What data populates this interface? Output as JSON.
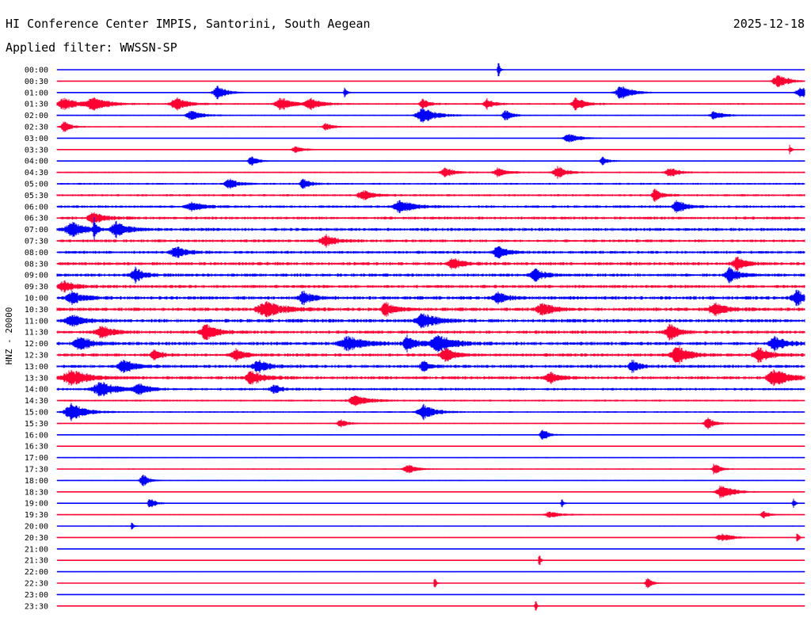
{
  "header": {
    "station": "HI Conference Center IMPIS, Santorini, South Aegean",
    "date": "2025-12-18",
    "filter": "Applied filter: WWSSN-SP"
  },
  "chart_data": {
    "type": "line",
    "title": "HI Conference Center IMPIS, Santorini, South Aegean",
    "subtitle": "Applied filter: WWSSN-SP",
    "ylabel": "HNZ - 20000",
    "xlabel": "",
    "colors": [
      "#0000ff",
      "#ff0033"
    ],
    "row_labels": [
      "00:00",
      "00:30",
      "01:00",
      "01:30",
      "02:00",
      "02:30",
      "03:00",
      "03:30",
      "04:00",
      "04:30",
      "05:00",
      "05:30",
      "06:00",
      "06:30",
      "07:00",
      "07:30",
      "08:00",
      "08:30",
      "09:00",
      "09:30",
      "10:00",
      "10:30",
      "11:00",
      "11:30",
      "12:00",
      "12:30",
      "13:00",
      "13:30",
      "14:00",
      "14:30",
      "15:00",
      "15:30",
      "16:00",
      "16:30",
      "17:00",
      "17:30",
      "18:00",
      "18:30",
      "19:00",
      "19:30",
      "20:00",
      "20:30",
      "21:00",
      "21:30",
      "22:00",
      "22:30",
      "23:00",
      "23:30"
    ],
    "noise_level": [
      0.2,
      0.2,
      0.35,
      0.55,
      0.4,
      0.35,
      0.25,
      0.3,
      0.4,
      0.5,
      0.6,
      0.7,
      0.8,
      0.9,
      1.0,
      0.9,
      0.9,
      1.0,
      1.0,
      1.0,
      1.1,
      1.1,
      1.1,
      1.0,
      1.1,
      1.0,
      1.0,
      1.0,
      0.8,
      0.6,
      0.5,
      0.4,
      0.4,
      0.35,
      0.35,
      0.35,
      0.35,
      0.35,
      0.35,
      0.35,
      0.3,
      0.3,
      0.3,
      0.3,
      0.25,
      0.25,
      0.25,
      0.2
    ],
    "events": [
      {
        "row": 0,
        "x": 0.59,
        "amp": 14,
        "w": 0.0015
      },
      {
        "row": 1,
        "x": 0.965,
        "amp": 9,
        "w": 0.01
      },
      {
        "row": 2,
        "x": 0.215,
        "amp": 9,
        "w": 0.008
      },
      {
        "row": 2,
        "x": 0.385,
        "amp": 7,
        "w": 0.002
      },
      {
        "row": 2,
        "x": 0.755,
        "amp": 9,
        "w": 0.01
      },
      {
        "row": 2,
        "x": 0.995,
        "amp": 8,
        "w": 0.008
      },
      {
        "row": 3,
        "x": 0.01,
        "amp": 8,
        "w": 0.012
      },
      {
        "row": 3,
        "x": 0.05,
        "amp": 9,
        "w": 0.012
      },
      {
        "row": 3,
        "x": 0.16,
        "amp": 8,
        "w": 0.01
      },
      {
        "row": 3,
        "x": 0.3,
        "amp": 8,
        "w": 0.01
      },
      {
        "row": 3,
        "x": 0.34,
        "amp": 7,
        "w": 0.01
      },
      {
        "row": 3,
        "x": 0.49,
        "amp": 6,
        "w": 0.006
      },
      {
        "row": 3,
        "x": 0.575,
        "amp": 7,
        "w": 0.006
      },
      {
        "row": 3,
        "x": 0.695,
        "amp": 8,
        "w": 0.008
      },
      {
        "row": 4,
        "x": 0.18,
        "amp": 6,
        "w": 0.01
      },
      {
        "row": 4,
        "x": 0.49,
        "amp": 10,
        "w": 0.012
      },
      {
        "row": 4,
        "x": 0.6,
        "amp": 7,
        "w": 0.006
      },
      {
        "row": 4,
        "x": 0.88,
        "amp": 6,
        "w": 0.008
      },
      {
        "row": 5,
        "x": 0.01,
        "amp": 7,
        "w": 0.006
      },
      {
        "row": 5,
        "x": 0.36,
        "amp": 5,
        "w": 0.006
      },
      {
        "row": 6,
        "x": 0.685,
        "amp": 6,
        "w": 0.01
      },
      {
        "row": 7,
        "x": 0.32,
        "amp": 4,
        "w": 0.008
      },
      {
        "row": 7,
        "x": 0.98,
        "amp": 8,
        "w": 0.0015
      },
      {
        "row": 8,
        "x": 0.26,
        "amp": 6,
        "w": 0.006
      },
      {
        "row": 8,
        "x": 0.73,
        "amp": 5,
        "w": 0.005
      },
      {
        "row": 9,
        "x": 0.52,
        "amp": 6,
        "w": 0.008
      },
      {
        "row": 9,
        "x": 0.59,
        "amp": 6,
        "w": 0.008
      },
      {
        "row": 9,
        "x": 0.67,
        "amp": 8,
        "w": 0.008
      },
      {
        "row": 9,
        "x": 0.82,
        "amp": 6,
        "w": 0.008
      },
      {
        "row": 10,
        "x": 0.23,
        "amp": 7,
        "w": 0.008
      },
      {
        "row": 10,
        "x": 0.33,
        "amp": 7,
        "w": 0.006
      },
      {
        "row": 11,
        "x": 0.41,
        "amp": 6,
        "w": 0.01
      },
      {
        "row": 11,
        "x": 0.8,
        "amp": 8,
        "w": 0.006
      },
      {
        "row": 12,
        "x": 0.18,
        "amp": 6,
        "w": 0.01
      },
      {
        "row": 12,
        "x": 0.46,
        "amp": 8,
        "w": 0.012
      },
      {
        "row": 12,
        "x": 0.83,
        "amp": 8,
        "w": 0.008
      },
      {
        "row": 13,
        "x": 0.05,
        "amp": 8,
        "w": 0.01
      },
      {
        "row": 14,
        "x": 0.02,
        "amp": 9,
        "w": 0.012
      },
      {
        "row": 14,
        "x": 0.05,
        "amp": 14,
        "w": 0.002
      },
      {
        "row": 14,
        "x": 0.08,
        "amp": 9,
        "w": 0.01
      },
      {
        "row": 15,
        "x": 0.36,
        "amp": 7,
        "w": 0.01
      },
      {
        "row": 16,
        "x": 0.16,
        "amp": 7,
        "w": 0.01
      },
      {
        "row": 16,
        "x": 0.59,
        "amp": 8,
        "w": 0.008
      },
      {
        "row": 17,
        "x": 0.53,
        "amp": 8,
        "w": 0.008
      },
      {
        "row": 17,
        "x": 0.91,
        "amp": 8,
        "w": 0.008
      },
      {
        "row": 18,
        "x": 0.105,
        "amp": 9,
        "w": 0.008
      },
      {
        "row": 18,
        "x": 0.64,
        "amp": 8,
        "w": 0.008
      },
      {
        "row": 18,
        "x": 0.9,
        "amp": 10,
        "w": 0.008
      },
      {
        "row": 19,
        "x": 0.01,
        "amp": 7,
        "w": 0.01
      },
      {
        "row": 20,
        "x": 0.02,
        "amp": 8,
        "w": 0.01
      },
      {
        "row": 20,
        "x": 0.33,
        "amp": 8,
        "w": 0.008
      },
      {
        "row": 20,
        "x": 0.59,
        "amp": 8,
        "w": 0.008
      },
      {
        "row": 20,
        "x": 0.99,
        "amp": 9,
        "w": 0.01
      },
      {
        "row": 21,
        "x": 0.28,
        "amp": 10,
        "w": 0.015
      },
      {
        "row": 21,
        "x": 0.44,
        "amp": 9,
        "w": 0.008
      },
      {
        "row": 21,
        "x": 0.65,
        "amp": 8,
        "w": 0.01
      },
      {
        "row": 21,
        "x": 0.88,
        "amp": 8,
        "w": 0.01
      },
      {
        "row": 22,
        "x": 0.02,
        "amp": 8,
        "w": 0.01
      },
      {
        "row": 22,
        "x": 0.49,
        "amp": 10,
        "w": 0.012
      },
      {
        "row": 23,
        "x": 0.06,
        "amp": 8,
        "w": 0.01
      },
      {
        "row": 23,
        "x": 0.2,
        "amp": 10,
        "w": 0.01
      },
      {
        "row": 23,
        "x": 0.82,
        "amp": 10,
        "w": 0.008
      },
      {
        "row": 24,
        "x": 0.03,
        "amp": 9,
        "w": 0.01
      },
      {
        "row": 24,
        "x": 0.39,
        "amp": 9,
        "w": 0.015
      },
      {
        "row": 24,
        "x": 0.47,
        "amp": 10,
        "w": 0.008
      },
      {
        "row": 24,
        "x": 0.51,
        "amp": 12,
        "w": 0.012
      },
      {
        "row": 24,
        "x": 0.96,
        "amp": 9,
        "w": 0.01
      },
      {
        "row": 25,
        "x": 0.13,
        "amp": 8,
        "w": 0.006
      },
      {
        "row": 25,
        "x": 0.24,
        "amp": 7,
        "w": 0.008
      },
      {
        "row": 25,
        "x": 0.52,
        "amp": 9,
        "w": 0.008
      },
      {
        "row": 25,
        "x": 0.83,
        "amp": 12,
        "w": 0.01
      },
      {
        "row": 25,
        "x": 0.94,
        "amp": 9,
        "w": 0.01
      },
      {
        "row": 26,
        "x": 0.09,
        "amp": 8,
        "w": 0.01
      },
      {
        "row": 26,
        "x": 0.27,
        "amp": 7,
        "w": 0.01
      },
      {
        "row": 26,
        "x": 0.49,
        "amp": 7,
        "w": 0.006
      },
      {
        "row": 26,
        "x": 0.77,
        "amp": 8,
        "w": 0.006
      },
      {
        "row": 27,
        "x": 0.02,
        "amp": 10,
        "w": 0.015
      },
      {
        "row": 27,
        "x": 0.26,
        "amp": 9,
        "w": 0.01
      },
      {
        "row": 27,
        "x": 0.66,
        "amp": 8,
        "w": 0.008
      },
      {
        "row": 27,
        "x": 0.96,
        "amp": 11,
        "w": 0.012
      },
      {
        "row": 28,
        "x": 0.06,
        "amp": 9,
        "w": 0.015
      },
      {
        "row": 28,
        "x": 0.11,
        "amp": 7,
        "w": 0.008
      },
      {
        "row": 28,
        "x": 0.29,
        "amp": 6,
        "w": 0.006
      },
      {
        "row": 29,
        "x": 0.4,
        "amp": 7,
        "w": 0.012
      },
      {
        "row": 30,
        "x": 0.02,
        "amp": 11,
        "w": 0.012
      },
      {
        "row": 30,
        "x": 0.49,
        "amp": 10,
        "w": 0.01
      },
      {
        "row": 31,
        "x": 0.38,
        "amp": 5,
        "w": 0.006
      },
      {
        "row": 31,
        "x": 0.87,
        "amp": 8,
        "w": 0.006
      },
      {
        "row": 32,
        "x": 0.65,
        "amp": 8,
        "w": 0.005
      },
      {
        "row": 35,
        "x": 0.47,
        "amp": 6,
        "w": 0.008
      },
      {
        "row": 35,
        "x": 0.88,
        "amp": 8,
        "w": 0.005
      },
      {
        "row": 36,
        "x": 0.115,
        "amp": 9,
        "w": 0.005
      },
      {
        "row": 37,
        "x": 0.89,
        "amp": 10,
        "w": 0.01
      },
      {
        "row": 38,
        "x": 0.125,
        "amp": 7,
        "w": 0.005
      },
      {
        "row": 38,
        "x": 0.675,
        "amp": 7,
        "w": 0.0015
      },
      {
        "row": 38,
        "x": 0.985,
        "amp": 6,
        "w": 0.002
      },
      {
        "row": 39,
        "x": 0.66,
        "amp": 4,
        "w": 0.01
      },
      {
        "row": 39,
        "x": 0.945,
        "amp": 5,
        "w": 0.005
      },
      {
        "row": 40,
        "x": 0.1,
        "amp": 7,
        "w": 0.0015
      },
      {
        "row": 41,
        "x": 0.89,
        "amp": 5,
        "w": 0.01
      },
      {
        "row": 41,
        "x": 0.99,
        "amp": 9,
        "w": 0.0015
      },
      {
        "row": 43,
        "x": 0.645,
        "amp": 9,
        "w": 0.0015
      },
      {
        "row": 45,
        "x": 0.505,
        "amp": 9,
        "w": 0.0015
      },
      {
        "row": 45,
        "x": 0.79,
        "amp": 8,
        "w": 0.004
      },
      {
        "row": 47,
        "x": 0.64,
        "amp": 9,
        "w": 0.0015
      }
    ]
  }
}
